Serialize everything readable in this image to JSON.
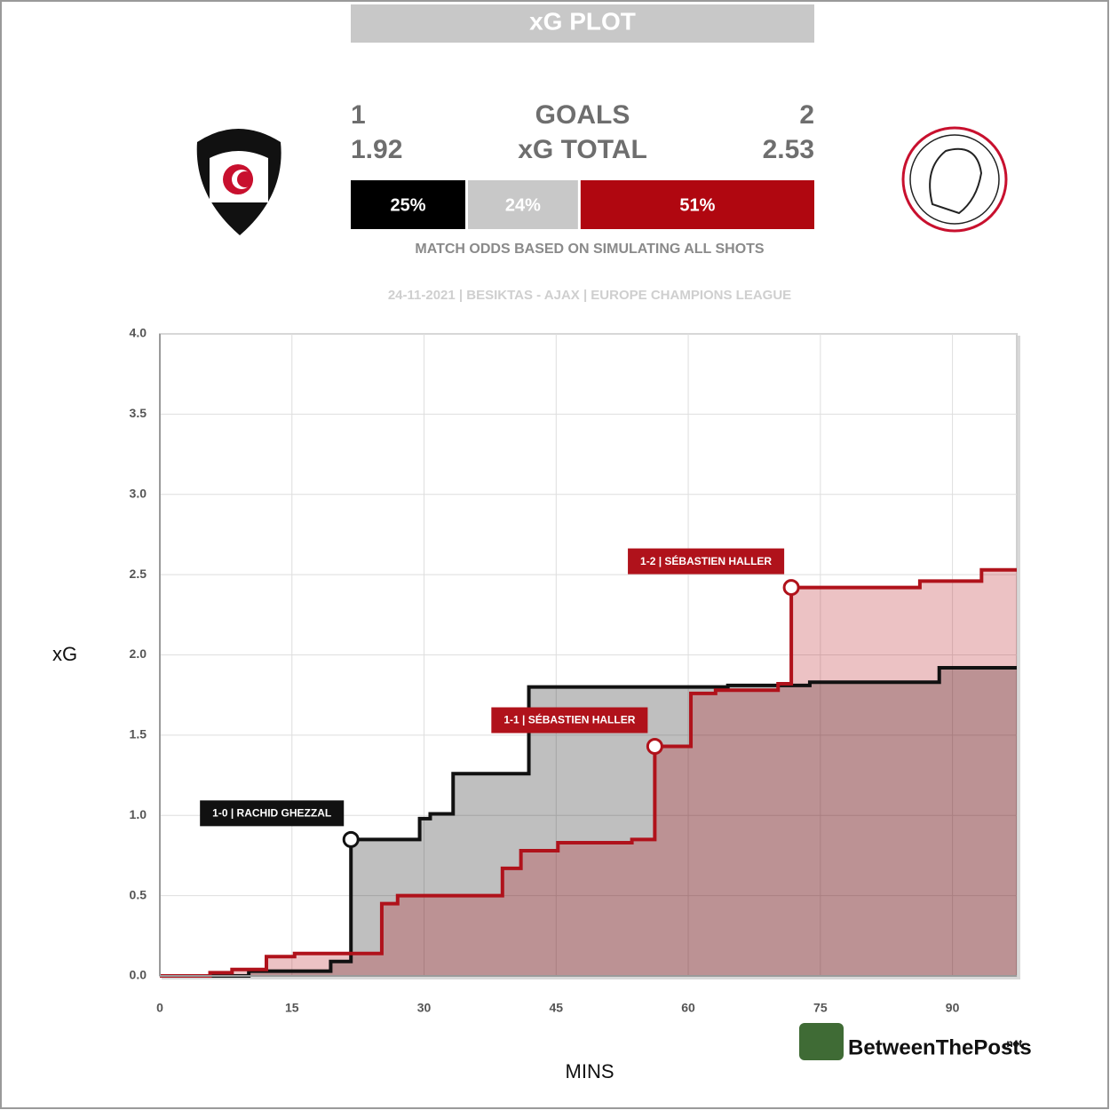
{
  "header": {
    "title": "xG PLOT",
    "home": {
      "goals": 1,
      "xg": 1.92
    },
    "away": {
      "goals": 2,
      "xg": 2.53
    },
    "goals_label": "GOALS",
    "xg_label": "xG TOTAL",
    "odds": [
      {
        "value": 25,
        "label": "25%",
        "color": "#000000"
      },
      {
        "value": 24,
        "label": "24%",
        "color": "#c8c8c8"
      },
      {
        "value": 51,
        "label": "51%",
        "color": "#b00710"
      }
    ],
    "odds_caption": "MATCH ODDS BASED ON SIMULATING ALL SHOTS",
    "subtitle": "24-11-2021 | BESIKTAS - AJAX | EUROPE CHAMPIONS LEAGUE",
    "brand": "BetweenThePosts",
    "brand_suffix": ".net"
  },
  "chart_data": {
    "type": "step",
    "x_label": "MINS",
    "y_label": "xG",
    "xlim": [
      0,
      97.3
    ],
    "ylim": [
      0,
      4.0
    ],
    "xticks": [
      0,
      15,
      30,
      45,
      60,
      75,
      90
    ],
    "yticks": [
      {
        "value": 0,
        "label": "0.0"
      },
      {
        "value": 0.5,
        "label": "0.5"
      },
      {
        "value": 1,
        "label": "1.0"
      },
      {
        "value": 1.5,
        "label": "1.5"
      },
      {
        "value": 2,
        "label": "2.0"
      },
      {
        "value": 2.5,
        "label": "2.5"
      },
      {
        "value": 3,
        "label": "3.0"
      },
      {
        "value": 3.5,
        "label": "3.5"
      },
      {
        "value": 4,
        "label": "4.0"
      }
    ],
    "grid": true,
    "series": [
      {
        "color": "#111111",
        "fill": "rgba(0,0,0,0.25)",
        "x": [
          0,
          10.1,
          19.4,
          21.7,
          29.5,
          30.7,
          33.3,
          41.9,
          64.5,
          73.8,
          88.5,
          97.3
        ],
        "values": [
          0,
          0.03,
          0.09,
          0.85,
          0.98,
          1.01,
          1.26,
          1.8,
          1.81,
          1.83,
          1.92,
          1.92
        ],
        "goals": [
          {
            "x": 21.7,
            "value": 0.85,
            "label": "1-0 | RACHID GHEZZAL"
          }
        ]
      },
      {
        "color": "#b0121b",
        "fill": "rgba(180,10,20,0.25)",
        "x": [
          0,
          5.7,
          8.2,
          12.1,
          15.3,
          25.2,
          27.0,
          38.9,
          41.0,
          45.2,
          53.6,
          56.2,
          60.3,
          63.1,
          70.2,
          71.7,
          86.3,
          93.3,
          97.3
        ],
        "values": [
          0,
          0.02,
          0.04,
          0.12,
          0.14,
          0.45,
          0.5,
          0.67,
          0.78,
          0.83,
          0.85,
          1.43,
          1.76,
          1.78,
          1.82,
          2.42,
          2.46,
          2.53,
          2.53
        ],
        "goals": [
          {
            "x": 56.2,
            "value": 1.43,
            "label": "1-1 | SÉBASTIEN HALLER"
          },
          {
            "x": 71.7,
            "value": 2.42,
            "label": "1-2 | SÉBASTIEN HALLER"
          }
        ]
      }
    ]
  }
}
